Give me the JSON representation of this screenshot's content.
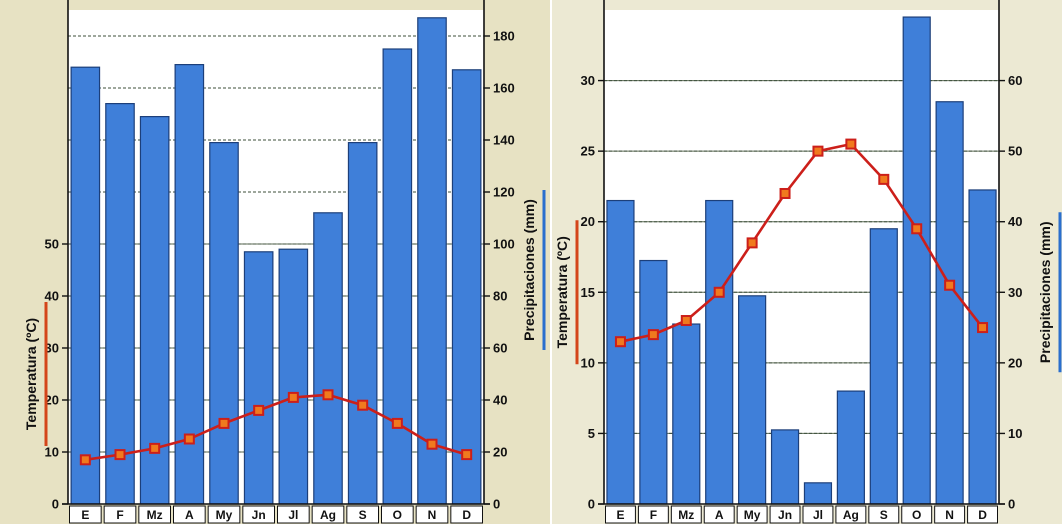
{
  "chart_data": [
    {
      "type": "bar",
      "categories": [
        "E",
        "F",
        "Mz",
        "A",
        "My",
        "Jn",
        "Jl",
        "Ag",
        "S",
        "O",
        "N",
        "D"
      ],
      "series": [
        {
          "kind": "bar",
          "axis": "right",
          "values": [
            168,
            154,
            149,
            169,
            139,
            97,
            98,
            112,
            139,
            175,
            187,
            167
          ]
        },
        {
          "kind": "line",
          "axis": "left",
          "values": [
            8.5,
            9.5,
            10.7,
            12.5,
            15.5,
            18,
            20.5,
            21,
            19,
            15.5,
            11.5,
            9.5
          ]
        }
      ],
      "ylabel": "Temperatura (ºC)",
      "y2label": "Precipitaciones (mm)",
      "yticks": [
        0,
        10,
        20,
        30,
        40,
        50
      ],
      "y2ticks": [
        0,
        20,
        40,
        60,
        80,
        100,
        120,
        140,
        160,
        180
      ],
      "ylim": [
        0,
        95
      ],
      "y2lim": [
        0,
        190
      ],
      "colors": {
        "bar": "#3f7fd9",
        "bar_edge": "#1c3f7a",
        "line": "#cc1f1a",
        "marker": "#f07a1e"
      }
    },
    {
      "type": "bar",
      "categories": [
        "E",
        "F",
        "Mz",
        "A",
        "My",
        "Jn",
        "Jl",
        "Ag",
        "S",
        "O",
        "N",
        "D"
      ],
      "series": [
        {
          "kind": "bar",
          "axis": "right",
          "values": [
            43,
            34.5,
            25.5,
            43,
            29.5,
            10.5,
            3,
            16,
            39,
            69,
            57,
            44.5
          ]
        },
        {
          "kind": "line",
          "axis": "left",
          "values": [
            11.5,
            12,
            13,
            15,
            18.5,
            22,
            25,
            25.5,
            23,
            19.5,
            15.5,
            12.5
          ]
        }
      ],
      "ylabel": "Temperatura (ºC)",
      "y2label": "Precipitaciones (mm)",
      "yticks": [
        0,
        5,
        10,
        15,
        20,
        25,
        30
      ],
      "y2ticks": [
        0,
        10,
        20,
        30,
        40,
        50,
        60
      ],
      "ylim": [
        0,
        35
      ],
      "y2lim": [
        0,
        70
      ],
      "colors": {
        "bar": "#3f7fd9",
        "bar_edge": "#1c3f7a",
        "line": "#cc1f1a",
        "marker": "#f07a1e"
      }
    }
  ]
}
